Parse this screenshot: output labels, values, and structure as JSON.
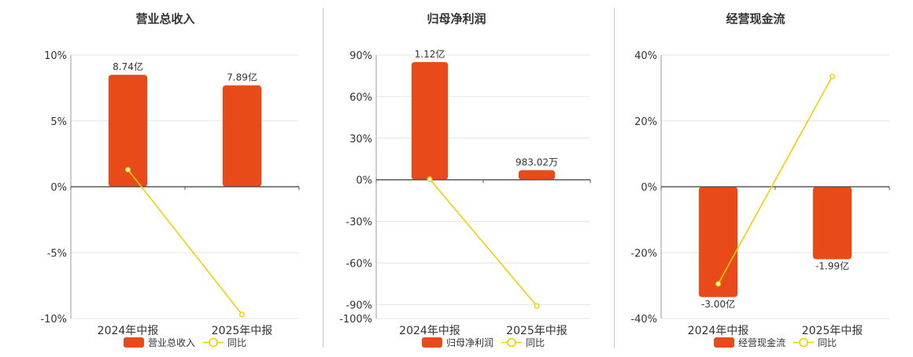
{
  "colors": {
    "bar": "#e84a1a",
    "line": "#f2cf00",
    "grid": "#e6e6e6",
    "axis": "#555555",
    "text": "#333333"
  },
  "legend_line_label": "同比",
  "chart_data": [
    {
      "type": "bar",
      "title": "营业总收入",
      "categories": [
        "2024年中报",
        "2025年中报"
      ],
      "series": [
        {
          "name": "营业总收入",
          "kind": "bar",
          "values": [
            8.5,
            7.7
          ],
          "labels": [
            "8.74亿",
            "7.89亿"
          ]
        },
        {
          "name": "同比",
          "kind": "line",
          "values": [
            1.3,
            -9.7
          ]
        }
      ],
      "yticks": [
        10,
        5,
        0,
        -5,
        -10
      ],
      "ylim": [
        -10,
        10
      ],
      "tick_suffix": "%",
      "xlabel": "",
      "ylabel": "",
      "grid": true,
      "legend": "bottom"
    },
    {
      "type": "bar",
      "title": "归母净利润",
      "categories": [
        "2024年中报",
        "2025年中报"
      ],
      "series": [
        {
          "name": "归母净利润",
          "kind": "bar",
          "values": [
            85,
            7
          ],
          "labels": [
            "1.12亿",
            "983.02万"
          ]
        },
        {
          "name": "同比",
          "kind": "line",
          "values": [
            0.5,
            -91
          ]
        }
      ],
      "yticks": [
        90,
        60,
        30,
        0,
        -30,
        -60,
        -90,
        -100
      ],
      "ylim": [
        -100,
        90
      ],
      "tick_suffix": "%",
      "xlabel": "",
      "ylabel": "",
      "grid": true,
      "legend": "bottom"
    },
    {
      "type": "bar",
      "title": "经营现金流",
      "categories": [
        "2024年中报",
        "2025年中报"
      ],
      "series": [
        {
          "name": "经营现金流",
          "kind": "bar",
          "values": [
            -33.5,
            -22
          ],
          "labels": [
            "-3.00亿",
            "-1.99亿"
          ]
        },
        {
          "name": "同比",
          "kind": "line",
          "values": [
            -29.5,
            33.5
          ]
        }
      ],
      "yticks": [
        40,
        20,
        0,
        -20,
        -40
      ],
      "ylim": [
        -40,
        40
      ],
      "tick_suffix": "%",
      "xlabel": "",
      "ylabel": "",
      "grid": true,
      "legend": "bottom"
    }
  ]
}
